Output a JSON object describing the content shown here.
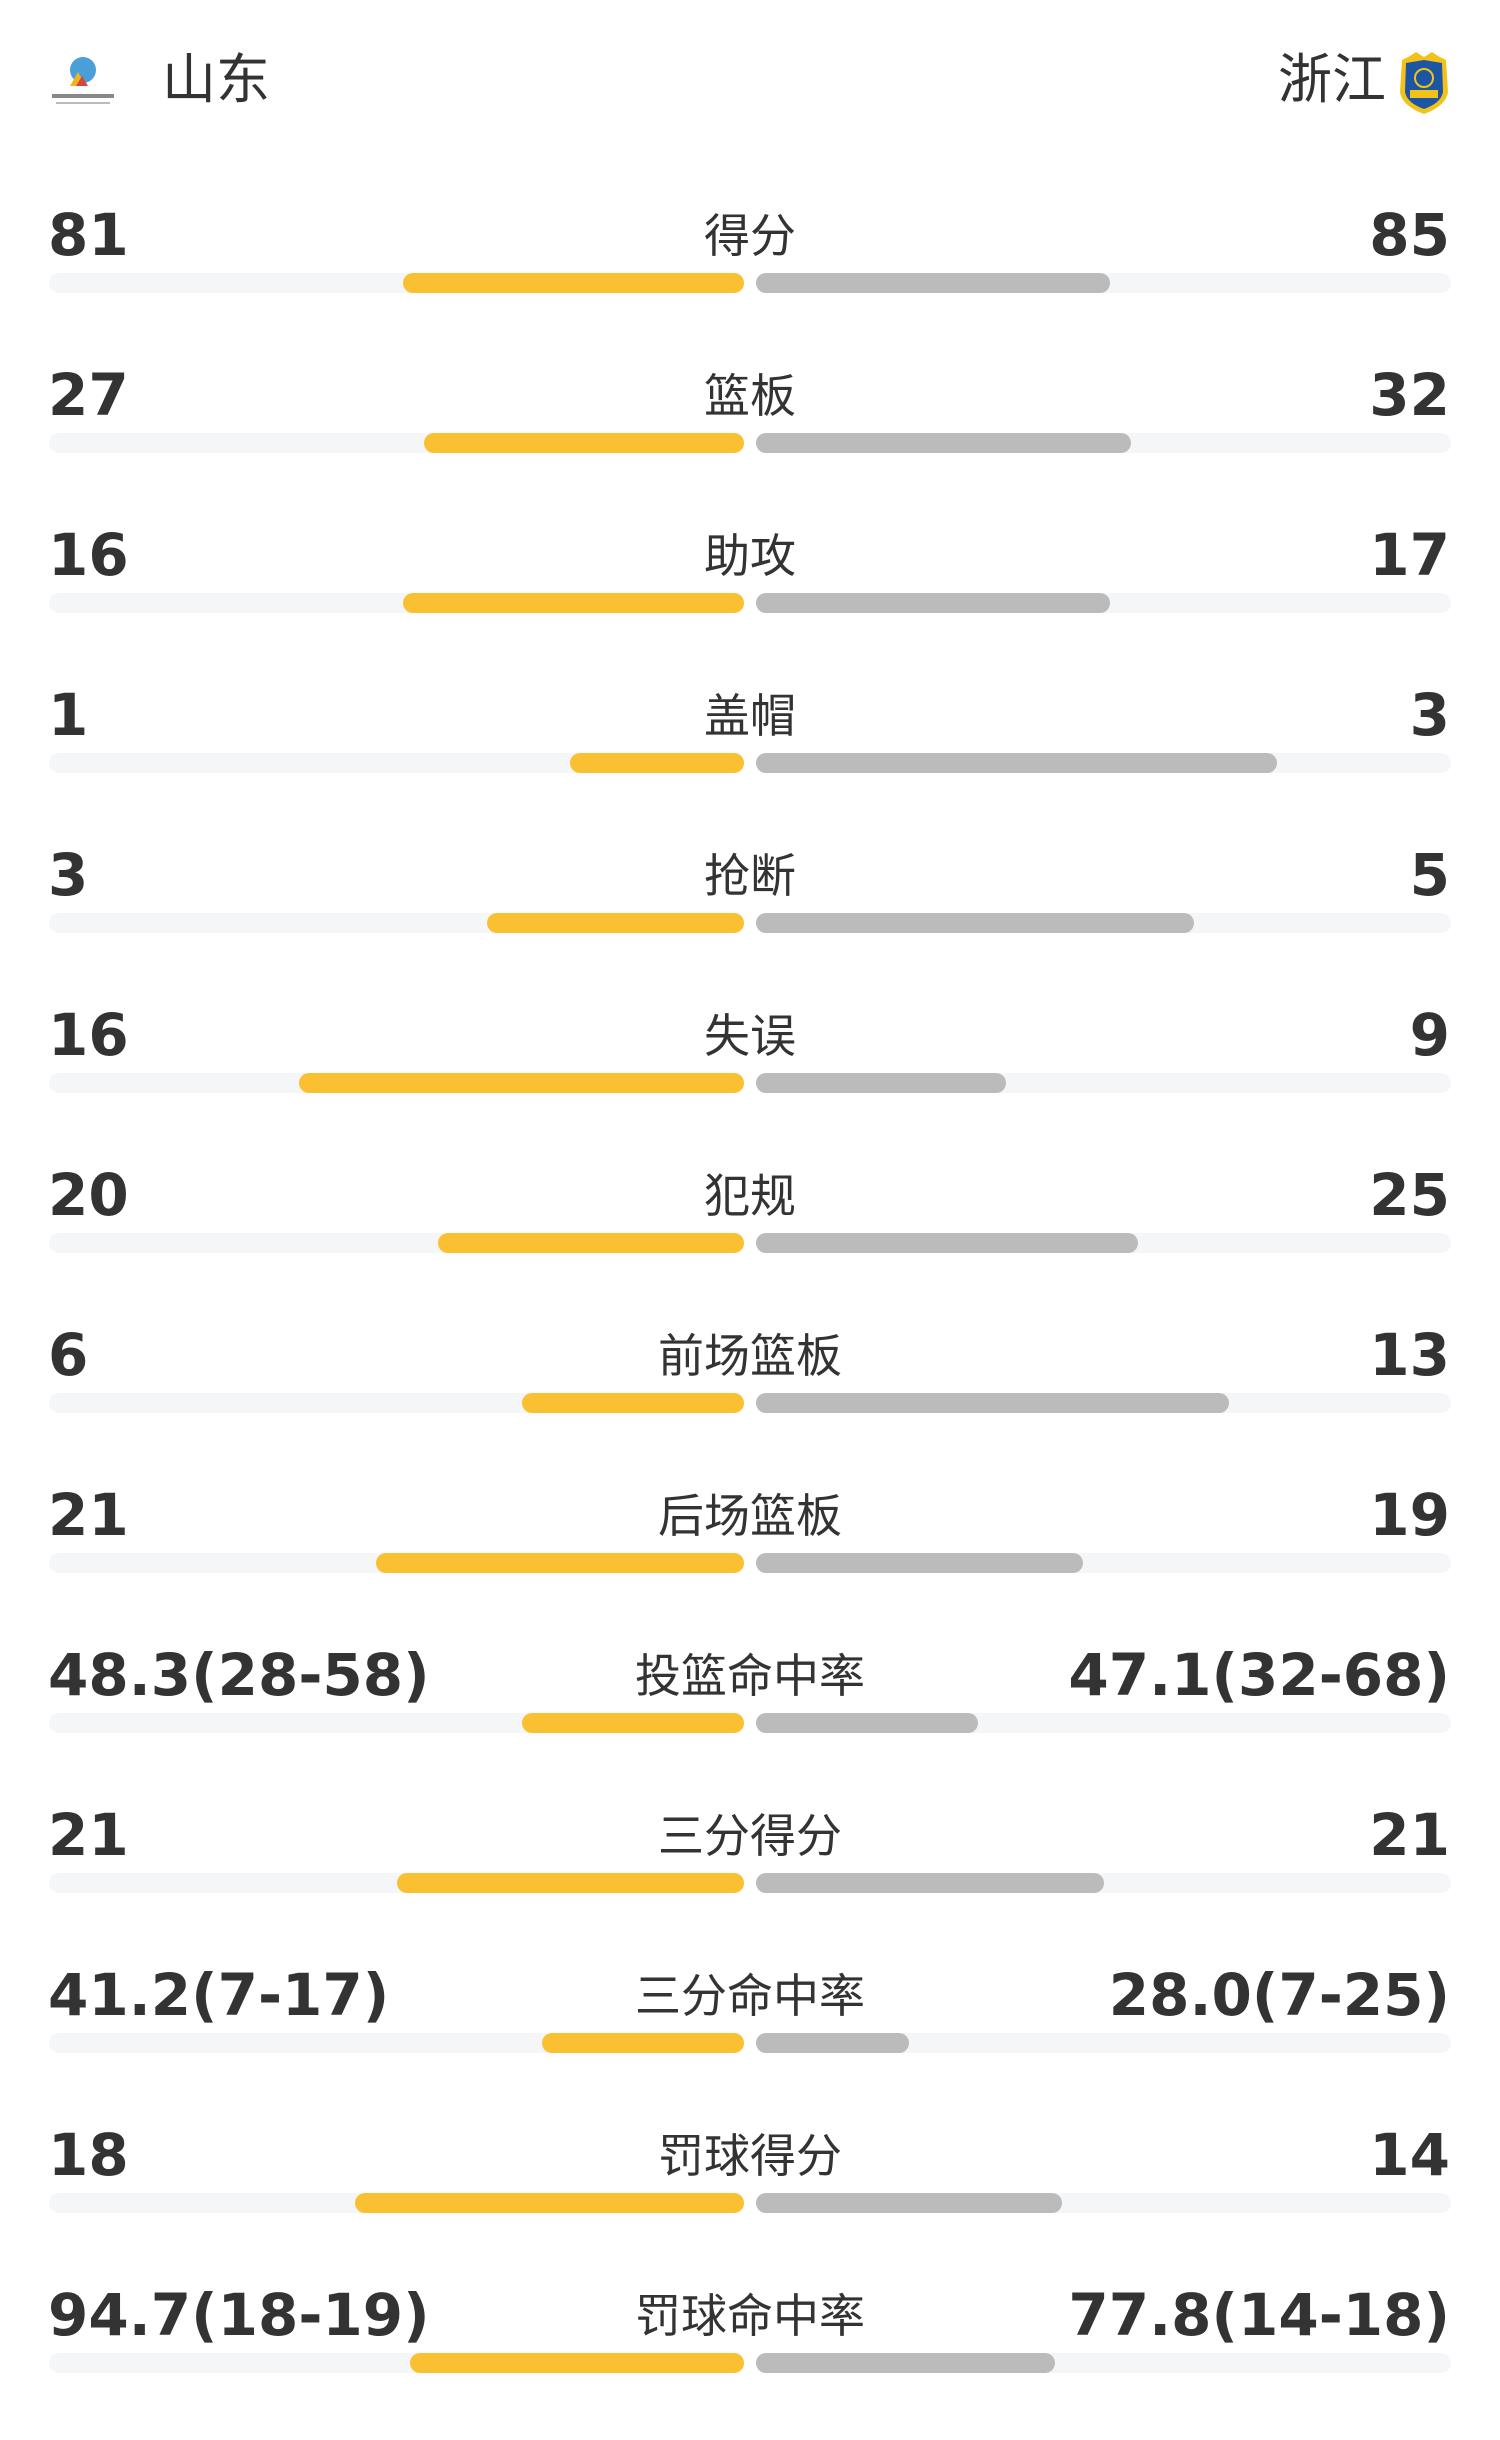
{
  "header": {
    "home_team": "山东",
    "away_team": "浙江",
    "home_logo_icon": "shandong-basketball-association-logo",
    "away_logo_icon": "zhejiang-guangsha-shield-logo"
  },
  "colors": {
    "home_bar": "#fbbf32",
    "away_bar": "#bbbbbb",
    "track": "#f5f6f8"
  },
  "stats": [
    {
      "label": "得分",
      "home": "81",
      "away": "85",
      "home_fill": 0.49,
      "away_fill": 0.51
    },
    {
      "label": "篮板",
      "home": "27",
      "away": "32",
      "home_fill": 0.46,
      "away_fill": 0.54
    },
    {
      "label": "助攻",
      "home": "16",
      "away": "17",
      "home_fill": 0.49,
      "away_fill": 0.51
    },
    {
      "label": "盖帽",
      "home": "1",
      "away": "3",
      "home_fill": 0.25,
      "away_fill": 0.75
    },
    {
      "label": "抢断",
      "home": "3",
      "away": "5",
      "home_fill": 0.37,
      "away_fill": 0.63
    },
    {
      "label": "失误",
      "home": "16",
      "away": "9",
      "home_fill": 0.64,
      "away_fill": 0.36
    },
    {
      "label": "犯规",
      "home": "20",
      "away": "25",
      "home_fill": 0.44,
      "away_fill": 0.55
    },
    {
      "label": "前场篮板",
      "home": "6",
      "away": "13",
      "home_fill": 0.32,
      "away_fill": 0.68
    },
    {
      "label": "后场篮板",
      "home": "21",
      "away": "19",
      "home_fill": 0.53,
      "away_fill": 0.47
    },
    {
      "label": "投篮命中率",
      "home": "48.3(28-58)",
      "away": "47.1(32-68)",
      "home_fill": 0.32,
      "away_fill": 0.32
    },
    {
      "label": "三分得分",
      "home": "21",
      "away": "21",
      "home_fill": 0.5,
      "away_fill": 0.5
    },
    {
      "label": "三分命中率",
      "home": "41.2(7-17)",
      "away": "28.0(7-25)",
      "home_fill": 0.29,
      "away_fill": 0.22
    },
    {
      "label": "罚球得分",
      "home": "18",
      "away": "14",
      "home_fill": 0.56,
      "away_fill": 0.44
    },
    {
      "label": "罚球命中率",
      "home": "94.7(18-19)",
      "away": "77.8(14-18)",
      "home_fill": 0.48,
      "away_fill": 0.43
    }
  ]
}
